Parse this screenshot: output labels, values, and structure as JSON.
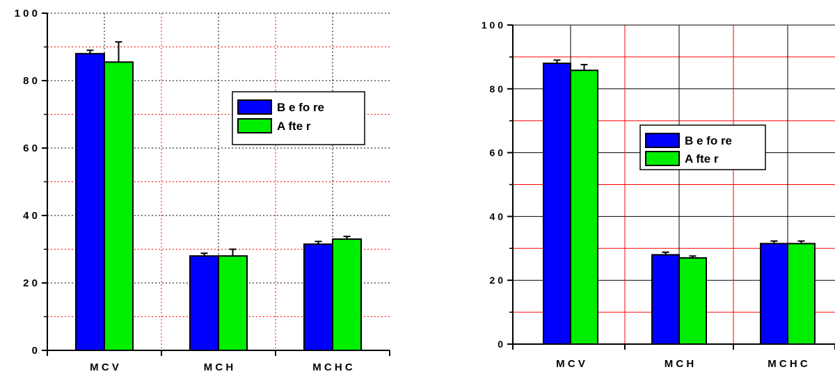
{
  "chart_data": [
    {
      "type": "bar",
      "categories": [
        "M C V",
        "M C H",
        "M C H C"
      ],
      "series": [
        {
          "name": "B e fo re",
          "values": [
            88,
            28,
            31.5
          ],
          "errors": [
            1,
            0.8,
            0.8
          ]
        },
        {
          "name": "A fte r",
          "values": [
            85.5,
            28,
            33
          ],
          "errors": [
            6,
            2,
            0.8
          ]
        }
      ],
      "ylim": [
        0,
        100
      ],
      "yticks": [
        "0",
        "2 0",
        "4 0",
        "6 0",
        "8 0",
        "1 0 0"
      ],
      "xlabel": "",
      "ylabel": "",
      "title": "",
      "grid": true,
      "legend": "right",
      "colors": {
        "series": [
          "#0000ff",
          "#00ee00"
        ],
        "grid_major": "#000000",
        "grid_minor": "#ff0000"
      }
    },
    {
      "type": "bar",
      "categories": [
        "M C V",
        "M C H",
        "M C H C"
      ],
      "series": [
        {
          "name": "B e fo re",
          "values": [
            88,
            28,
            31.5
          ],
          "errors": [
            1,
            0.8,
            0.8
          ]
        },
        {
          "name": "A fte r",
          "values": [
            85.8,
            27,
            31.5
          ],
          "errors": [
            1.8,
            0.6,
            0.8
          ]
        }
      ],
      "ylim": [
        0,
        100
      ],
      "yticks": [
        "0",
        "2 0",
        "4 0",
        "6 0",
        "8 0",
        "1 0 0"
      ],
      "xlabel": "",
      "ylabel": "",
      "title": "",
      "grid": true,
      "legend": "center",
      "colors": {
        "series": [
          "#0000ff",
          "#00ee00"
        ],
        "grid_major": "#000000",
        "grid_minor": "#ff0000"
      }
    }
  ]
}
